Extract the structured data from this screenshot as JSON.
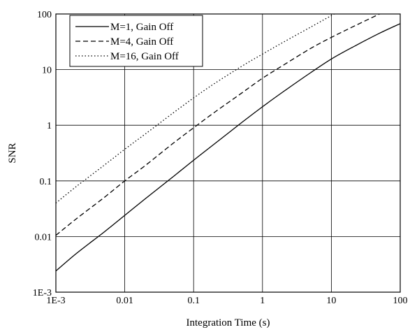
{
  "chart_data": {
    "type": "line",
    "xscale": "log",
    "yscale": "log",
    "xlim": [
      0.001,
      100
    ],
    "ylim": [
      0.001,
      100
    ],
    "xlabel": "Integration Time (s)",
    "ylabel": "SNR",
    "grid": true,
    "legend_position": "top-left",
    "x_ticks": [
      0.001,
      0.01,
      0.1,
      1,
      10,
      100
    ],
    "x_tick_labels": [
      "1E-3",
      "0.01",
      "0.1",
      "1",
      "10",
      "100"
    ],
    "y_ticks": [
      0.001,
      0.01,
      0.1,
      1,
      10,
      100
    ],
    "y_tick_labels": [
      "1E-3",
      "0.01",
      "0.1",
      "1",
      "10",
      "100"
    ],
    "series": [
      {
        "name": "M=1, Gain Off",
        "line_style": "solid",
        "x": [
          0.001,
          0.002,
          0.005,
          0.01,
          0.02,
          0.05,
          0.1,
          0.2,
          0.5,
          1,
          2,
          5,
          10,
          20,
          50,
          100
        ],
        "y": [
          0.0024,
          0.005,
          0.012,
          0.024,
          0.048,
          0.118,
          0.235,
          0.46,
          1.12,
          2.15,
          4.0,
          8.8,
          15.5,
          25,
          45,
          67
        ]
      },
      {
        "name": "M=4, Gain Off",
        "line_style": "dashed",
        "x": [
          0.001,
          0.002,
          0.005,
          0.01,
          0.02,
          0.05,
          0.1,
          0.2,
          0.5,
          1,
          2,
          5,
          10,
          20,
          50
        ],
        "y": [
          0.0105,
          0.021,
          0.05,
          0.1,
          0.19,
          0.47,
          0.9,
          1.7,
          3.8,
          7.0,
          12,
          24,
          38,
          58,
          100
        ]
      },
      {
        "name": "M=16, Gain Off",
        "line_style": "dotted",
        "x": [
          0.001,
          0.002,
          0.005,
          0.01,
          0.02,
          0.05,
          0.1,
          0.2,
          0.5,
          1,
          2,
          5,
          11
        ],
        "y": [
          0.04,
          0.08,
          0.19,
          0.37,
          0.7,
          1.65,
          3.1,
          5.6,
          11.5,
          19,
          31,
          58,
          100
        ]
      }
    ]
  }
}
